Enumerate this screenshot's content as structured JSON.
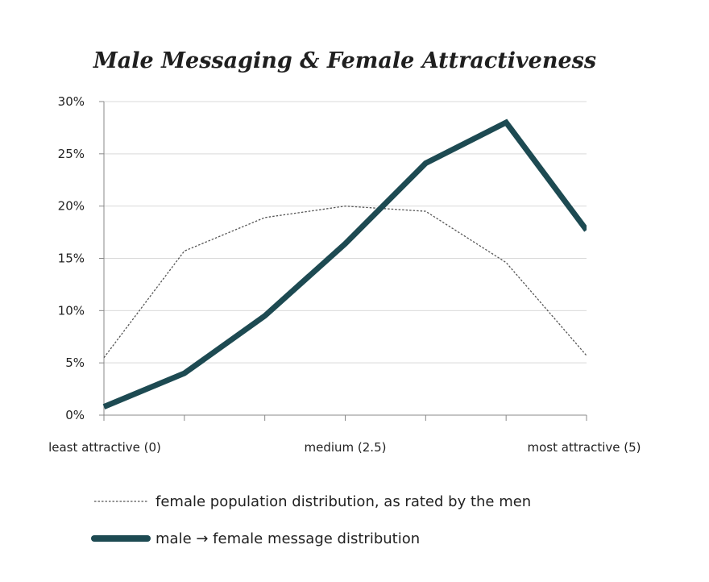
{
  "chart_data": {
    "type": "line",
    "title": "Male Messaging & Female Attractiveness",
    "xlabel": "",
    "ylabel": "",
    "x": [
      0,
      1,
      2,
      3,
      4,
      5,
      6
    ],
    "x_tick_labels": [
      {
        "x": 0,
        "label": "least attractive (0)"
      },
      {
        "x": 3,
        "label": "medium (2.5)"
      },
      {
        "x": 6,
        "label": "most attractive (5)"
      }
    ],
    "y_ticks": [
      "0%",
      "5%",
      "10%",
      "15%",
      "20%",
      "25%",
      "30%"
    ],
    "ylim": [
      0,
      30
    ],
    "grid": true,
    "legend_position": "bottom",
    "series": [
      {
        "name": "female population distribution, as rated by the men",
        "style": "dotted",
        "color": "#555555",
        "values": [
          5.5,
          15.7,
          18.9,
          20.0,
          19.5,
          14.6,
          5.7
        ]
      },
      {
        "name": "male → female message distribution",
        "style": "thick",
        "color": "#1d4a52",
        "values": [
          0.8,
          4.0,
          9.5,
          16.4,
          24.1,
          28.0,
          17.7
        ]
      }
    ]
  }
}
